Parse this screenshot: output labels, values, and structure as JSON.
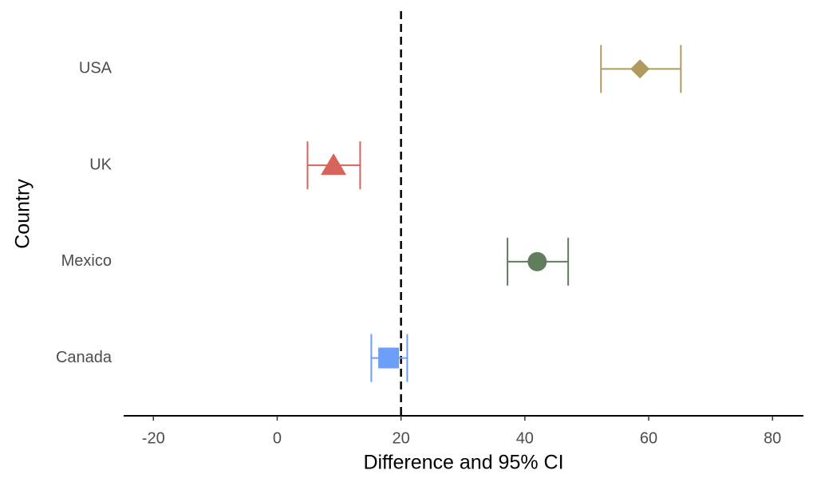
{
  "chart_data": {
    "type": "forest",
    "xlabel": "Difference and 95% CI",
    "ylabel": "Country",
    "categories": [
      "Canada",
      "Mexico",
      "UK",
      "USA"
    ],
    "values": [
      18.0,
      42.0,
      9.1,
      58.6
    ],
    "lower": [
      15.2,
      37.2,
      4.9,
      52.3
    ],
    "upper": [
      21.0,
      47.0,
      13.4,
      65.2
    ],
    "colors": [
      "#6d9ef9",
      "#617d5e",
      "#d7645a",
      "#b09a60"
    ],
    "shapes": [
      "square",
      "circle",
      "triangle",
      "diamond"
    ],
    "refline": 20,
    "xlim": [
      -24.8,
      85
    ],
    "xticks": [
      -20,
      0,
      20,
      40,
      60,
      80
    ]
  }
}
